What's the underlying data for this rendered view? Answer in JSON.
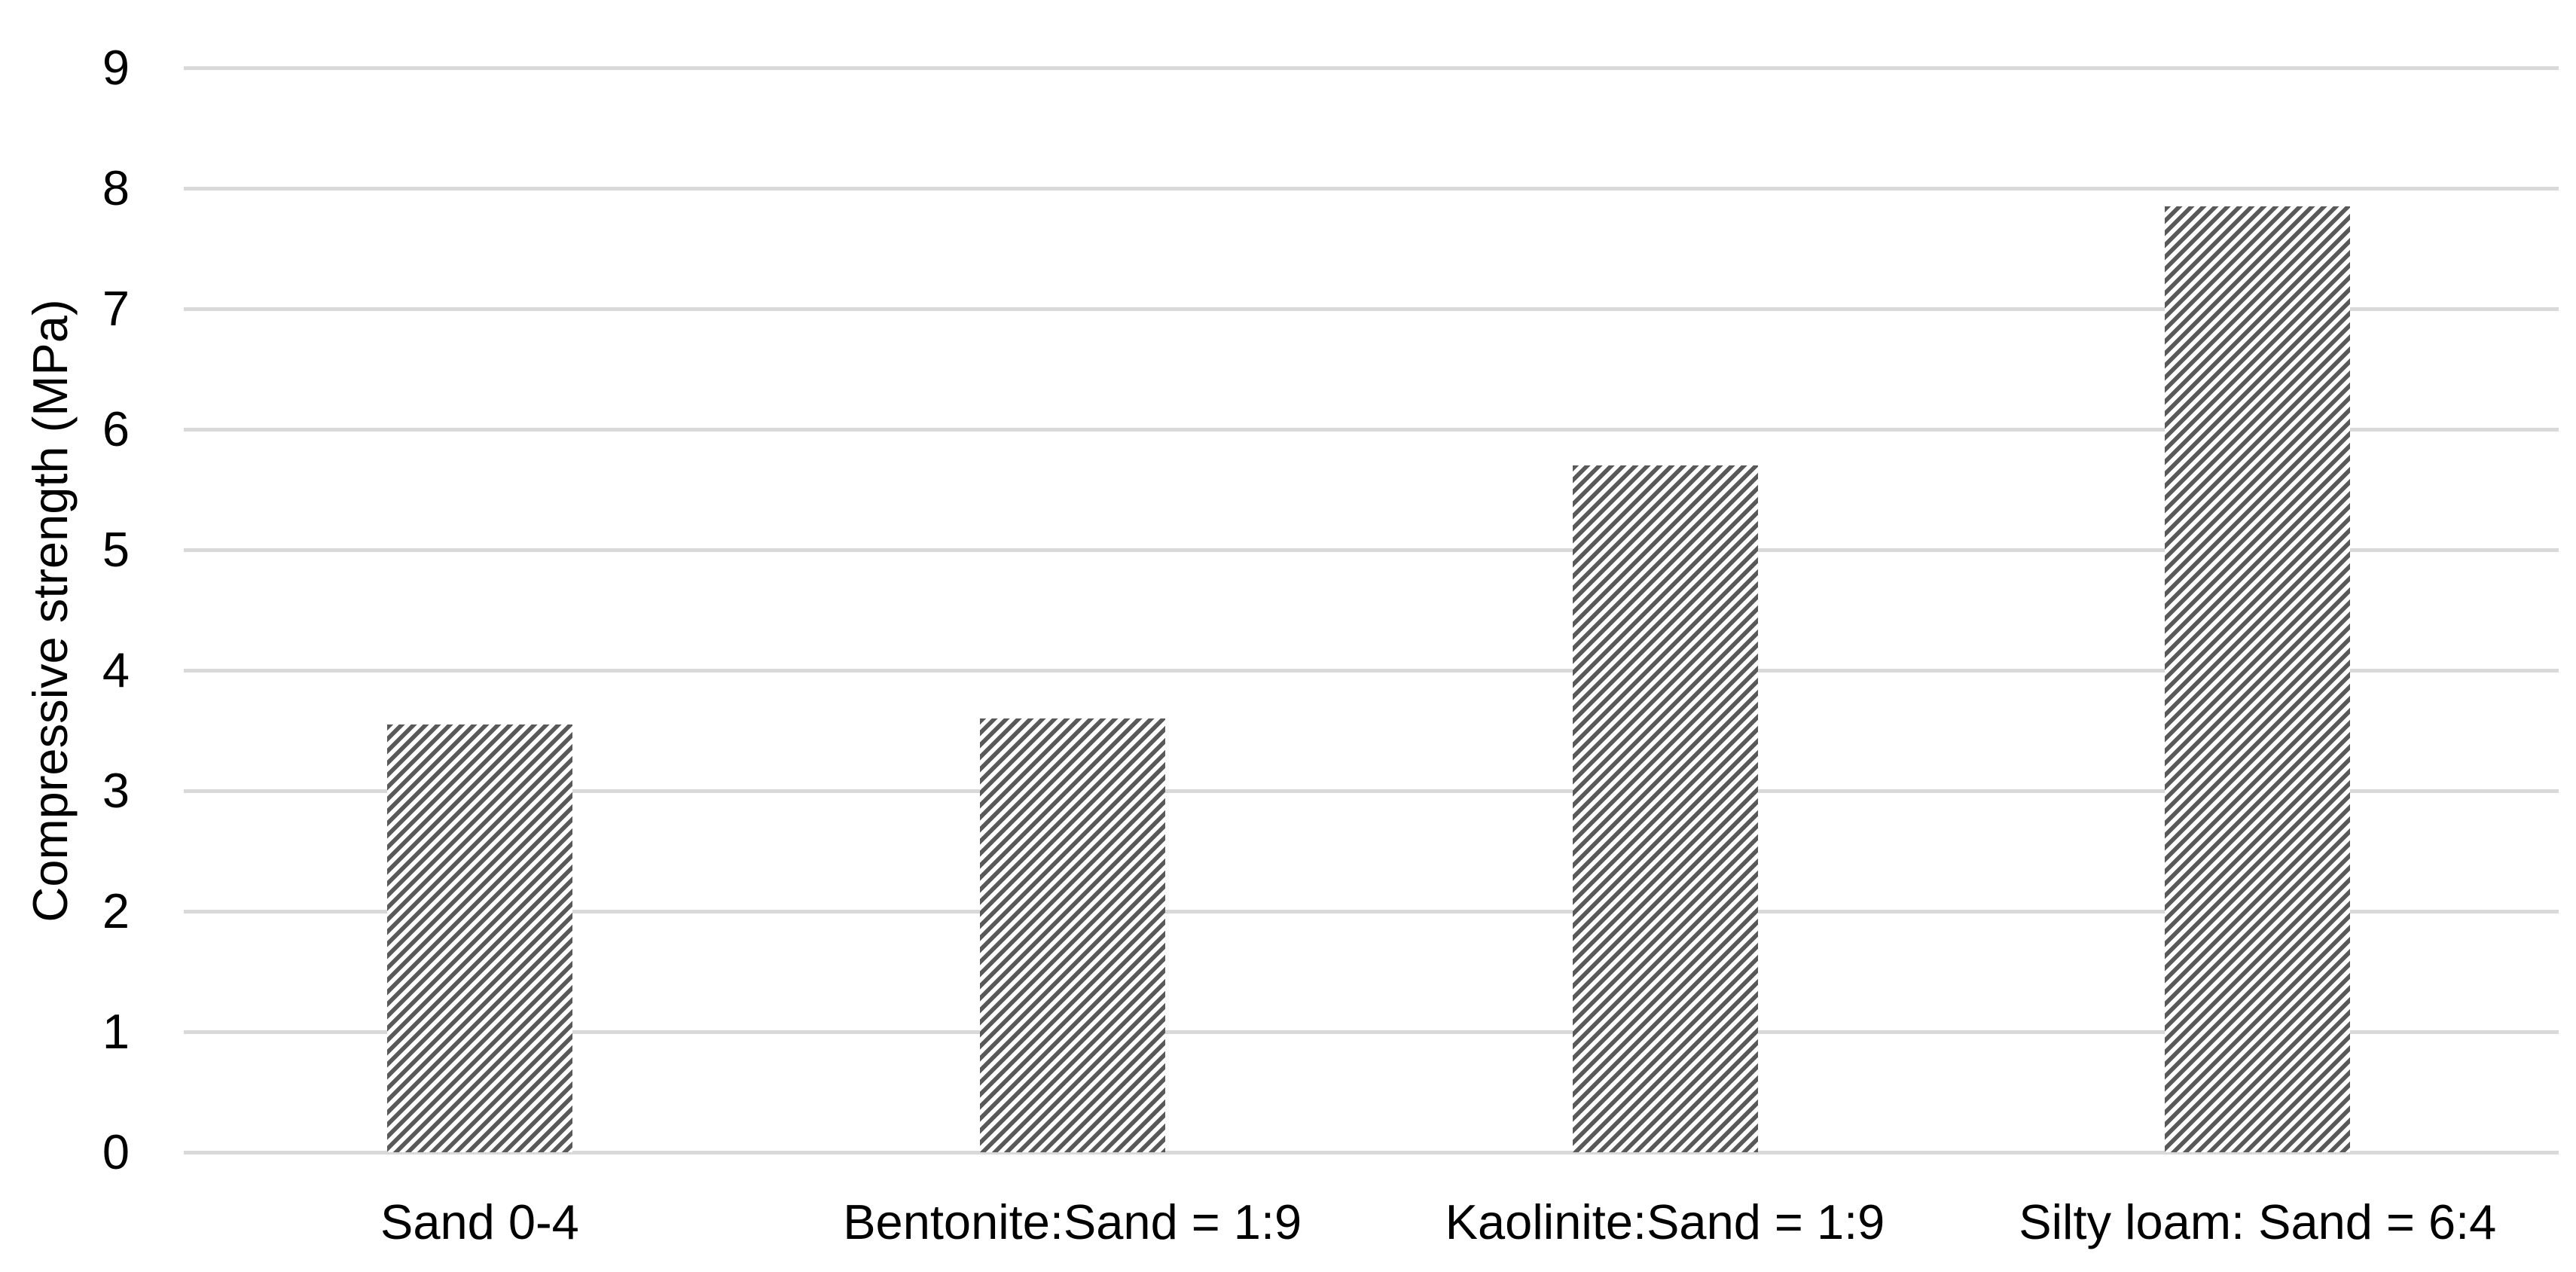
{
  "chart_data": {
    "type": "bar",
    "title": "",
    "xlabel": "",
    "ylabel": "Compressive strength (MPa)",
    "categories": [
      "Sand 0-4",
      "Bentonite:Sand = 1:9",
      "Kaolinite:Sand = 1:9",
      "Silty loam: Sand = 6:4"
    ],
    "values": [
      3.55,
      3.6,
      5.7,
      7.85
    ],
    "ylim": [
      0,
      9
    ],
    "ytick_step": 1,
    "yticks": [
      "0",
      "1",
      "2",
      "3",
      "4",
      "5",
      "6",
      "7",
      "8",
      "9"
    ],
    "grid": true,
    "legend_position": "none",
    "bar_pattern": "upward-diagonal-hatch",
    "colors": {
      "hatch_stripe": "#595959",
      "hatch_background": "#ffffff",
      "gridline": "#d9d9d9",
      "axis_text": "#000000",
      "background": "#ffffff"
    }
  }
}
